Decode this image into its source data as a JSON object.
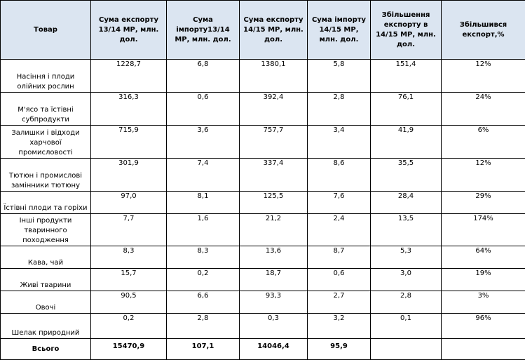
{
  "headers": {
    "product": "Товар",
    "export_13_14": "Сума  експорту 13/14 МР, млн. дол.",
    "import_13_14": "Сума імпорту13/14 МР, млн. дол.",
    "export_14_15": "Сума експорту 14/15 МР, млн. дол.",
    "import_14_15": "Сума імпорту 14/15 МР, млн. дол.",
    "export_increase": "Збільшення експорту в 14/15 МР, млн. дол.",
    "export_increase_pct": "Збільшився експорт,%"
  },
  "rows": [
    {
      "product": "Насіння і плоди олійних рослин",
      "export_13_14": "1228,7",
      "import_13_14": "6,8",
      "export_14_15": "1380,1",
      "import_14_15": "5,8",
      "export_increase": "151,4",
      "export_increase_pct": "12%"
    },
    {
      "product": "М'ясо та їстівні субпродукти",
      "export_13_14": "316,3",
      "import_13_14": "0,6",
      "export_14_15": "392,4",
      "import_14_15": "2,8",
      "export_increase": "76,1",
      "export_increase_pct": "24%"
    },
    {
      "product": "Залишки і відходи харчової промисловості",
      "export_13_14": "715,9",
      "import_13_14": "3,6",
      "export_14_15": "757,7",
      "import_14_15": "3,4",
      "export_increase": "41,9",
      "export_increase_pct": "6%"
    },
    {
      "product": "Тютюн і промислові замінники тютюну",
      "export_13_14": "301,9",
      "import_13_14": "7,4",
      "export_14_15": "337,4",
      "import_14_15": "8,6",
      "export_increase": "35,5",
      "export_increase_pct": "12%"
    },
    {
      "product": "Їстівні плоди та горіхи",
      "export_13_14": "97,0",
      "import_13_14": "8,1",
      "export_14_15": "125,5",
      "import_14_15": "7,6",
      "export_increase": "28,4",
      "export_increase_pct": "29%"
    },
    {
      "product": "Інші продукти тваринного походження",
      "export_13_14": "7,7",
      "import_13_14": "1,6",
      "export_14_15": "21,2",
      "import_14_15": "2,4",
      "export_increase": "13,5",
      "export_increase_pct": "174%"
    },
    {
      "product": "Кава, чай",
      "export_13_14": "8,3",
      "import_13_14": "8,3",
      "export_14_15": "13,6",
      "import_14_15": "8,7",
      "export_increase": "5,3",
      "export_increase_pct": "64%"
    },
    {
      "product": "Живі тварини",
      "export_13_14": "15,7",
      "import_13_14": "0,2",
      "export_14_15": "18,7",
      "import_14_15": "0,6",
      "export_increase": "3,0",
      "export_increase_pct": "19%"
    },
    {
      "product": "Овочі",
      "export_13_14": "90,5",
      "import_13_14": "6,6",
      "export_14_15": "93,3",
      "import_14_15": "2,7",
      "export_increase": "2,8",
      "export_increase_pct": "3%"
    },
    {
      "product": "Шелак природний",
      "export_13_14": "0,2",
      "import_13_14": "2,8",
      "export_14_15": "0,3",
      "import_14_15": "3,2",
      "export_increase": "0,1",
      "export_increase_pct": "96%"
    }
  ],
  "total": {
    "product": "Всього",
    "export_13_14": "15470,9",
    "import_13_14": "107,1",
    "export_14_15": "14046,4",
    "import_14_15": "95,9",
    "export_increase": "",
    "export_increase_pct": ""
  }
}
